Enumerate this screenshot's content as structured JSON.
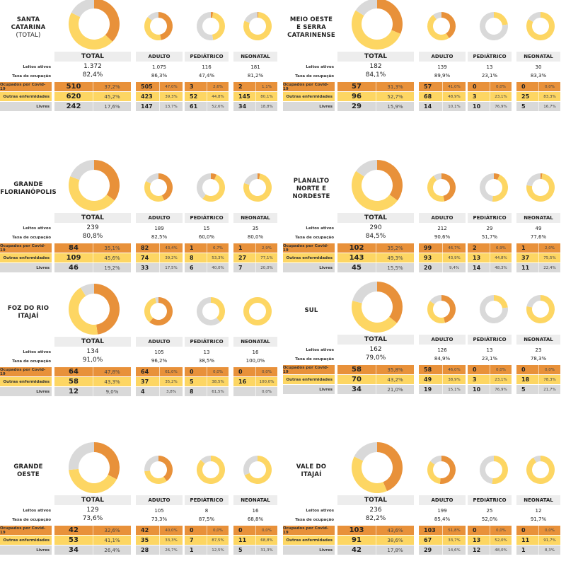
{
  "colors": {
    "covid": "#E8913A",
    "outras": "#FDD663",
    "livres": "#D9D9D9",
    "header": "#EDEDED"
  },
  "columns": [
    "TOTAL",
    "ADULTO",
    "PEDIÁTRICO",
    "NEONATAL"
  ],
  "row_labels": {
    "leitos": "Leitos ativos",
    "taxa": "Taxa de ocupação",
    "covid": "Ocupados por Covid-19",
    "outras": "Outras enfermidades",
    "livres": "Livres"
  },
  "chart_data": [
    {
      "type": "pie",
      "region": [
        "SANTA",
        "CATARINA"
      ],
      "subtitle": "(TOTAL)",
      "groups": [
        {
          "leitos": "1.372",
          "taxa": "82,4%",
          "covid": [
            510,
            "37,2%"
          ],
          "outras": [
            620,
            "45,2%"
          ],
          "livres": [
            242,
            "17,6%"
          ]
        },
        {
          "leitos": "1.075",
          "taxa": "86,3%",
          "covid": [
            505,
            "47,0%"
          ],
          "outras": [
            423,
            "39,3%"
          ],
          "livres": [
            147,
            "13,7%"
          ]
        },
        {
          "leitos": "116",
          "taxa": "47,4%",
          "covid": [
            3,
            "2,6%"
          ],
          "outras": [
            52,
            "44,8%"
          ],
          "livres": [
            61,
            "52,6%"
          ]
        },
        {
          "leitos": "181",
          "taxa": "81,2%",
          "covid": [
            2,
            "1,1%"
          ],
          "outras": [
            145,
            "80,1%"
          ],
          "livres": [
            34,
            "18,8%"
          ]
        }
      ]
    },
    {
      "type": "pie",
      "region": [
        "MEIO OESTE",
        "E SERRA",
        "CATARINENSE"
      ],
      "groups": [
        {
          "leitos": "182",
          "taxa": "84,1%",
          "covid": [
            57,
            "31,3%"
          ],
          "outras": [
            96,
            "52,7%"
          ],
          "livres": [
            29,
            "15,9%"
          ]
        },
        {
          "leitos": "139",
          "taxa": "89,9%",
          "covid": [
            57,
            "41,0%"
          ],
          "outras": [
            68,
            "48,9%"
          ],
          "livres": [
            14,
            "10,1%"
          ]
        },
        {
          "leitos": "13",
          "taxa": "23,1%",
          "covid": [
            0,
            "0,0%"
          ],
          "outras": [
            3,
            "23,1%"
          ],
          "livres": [
            10,
            "76,9%"
          ]
        },
        {
          "leitos": "30",
          "taxa": "83,3%",
          "covid": [
            0,
            "0,0%"
          ],
          "outras": [
            25,
            "83,3%"
          ],
          "livres": [
            5,
            "16,7%"
          ]
        }
      ]
    },
    {
      "type": "pie",
      "region": [
        "GRANDE",
        "FLORIANÓPOLIS"
      ],
      "groups": [
        {
          "leitos": "239",
          "taxa": "80,8%",
          "covid": [
            84,
            "35,1%"
          ],
          "outras": [
            109,
            "45,6%"
          ],
          "livres": [
            46,
            "19,2%"
          ]
        },
        {
          "leitos": "189",
          "taxa": "82,5%",
          "covid": [
            82,
            "43,4%"
          ],
          "outras": [
            74,
            "39,2%"
          ],
          "livres": [
            33,
            "17,5%"
          ]
        },
        {
          "leitos": "15",
          "taxa": "60,0%",
          "covid": [
            1,
            "6,7%"
          ],
          "outras": [
            8,
            "53,3%"
          ],
          "livres": [
            6,
            "40,0%"
          ]
        },
        {
          "leitos": "35",
          "taxa": "80,0%",
          "covid": [
            1,
            "2,9%"
          ],
          "outras": [
            27,
            "77,1%"
          ],
          "livres": [
            7,
            "20,0%"
          ]
        }
      ]
    },
    {
      "type": "pie",
      "region": [
        "PLANALTO",
        "NORTE E",
        "NORDESTE"
      ],
      "groups": [
        {
          "leitos": "290",
          "taxa": "84,5%",
          "covid": [
            102,
            "35,2%"
          ],
          "outras": [
            143,
            "49,3%"
          ],
          "livres": [
            45,
            "15,5%"
          ]
        },
        {
          "leitos": "212",
          "taxa": "90,6%",
          "covid": [
            99,
            "46,7%"
          ],
          "outras": [
            93,
            "43,9%"
          ],
          "livres": [
            20,
            "9,4%"
          ]
        },
        {
          "leitos": "29",
          "taxa": "51,7%",
          "covid": [
            2,
            "6,9%"
          ],
          "outras": [
            13,
            "44,8%"
          ],
          "livres": [
            14,
            "48,3%"
          ]
        },
        {
          "leitos": "49",
          "taxa": "77,6%",
          "covid": [
            1,
            "2,0%"
          ],
          "outras": [
            37,
            "75,5%"
          ],
          "livres": [
            11,
            "22,4%"
          ]
        }
      ]
    },
    {
      "type": "pie",
      "region": [
        "FOZ DO RIO",
        "ITAJAÍ"
      ],
      "groups": [
        {
          "leitos": "134",
          "taxa": "91,0%",
          "covid": [
            64,
            "47,8%"
          ],
          "outras": [
            58,
            "43,3%"
          ],
          "livres": [
            12,
            "9,0%"
          ]
        },
        {
          "leitos": "105",
          "taxa": "96,2%",
          "covid": [
            64,
            "61,0%"
          ],
          "outras": [
            37,
            "35,2%"
          ],
          "livres": [
            4,
            "3,8%"
          ]
        },
        {
          "leitos": "13",
          "taxa": "38,5%",
          "covid": [
            0,
            "0,0%"
          ],
          "outras": [
            5,
            "38,5%"
          ],
          "livres": [
            8,
            "61,5%"
          ]
        },
        {
          "leitos": "16",
          "taxa": "100,0%",
          "covid": [
            0,
            "0,0%"
          ],
          "outras": [
            16,
            "100,0%"
          ],
          "livres": [
            "",
            "0,0%"
          ]
        }
      ]
    },
    {
      "type": "pie",
      "region": [
        "SUL"
      ],
      "groups": [
        {
          "leitos": "162",
          "taxa": "79,0%",
          "covid": [
            58,
            "35,8%"
          ],
          "outras": [
            70,
            "43,2%"
          ],
          "livres": [
            34,
            "21,0%"
          ]
        },
        {
          "leitos": "126",
          "taxa": "84,9%",
          "covid": [
            58,
            "46,0%"
          ],
          "outras": [
            49,
            "38,9%"
          ],
          "livres": [
            19,
            "15,1%"
          ]
        },
        {
          "leitos": "13",
          "taxa": "23,1%",
          "covid": [
            0,
            "0,0%"
          ],
          "outras": [
            3,
            "23,1%"
          ],
          "livres": [
            10,
            "76,9%"
          ]
        },
        {
          "leitos": "23",
          "taxa": "78,3%",
          "covid": [
            0,
            "0,0%"
          ],
          "outras": [
            18,
            "78,3%"
          ],
          "livres": [
            5,
            "21,7%"
          ]
        }
      ]
    },
    {
      "type": "pie",
      "region": [
        "GRANDE",
        "OESTE"
      ],
      "groups": [
        {
          "leitos": "129",
          "taxa": "73,6%",
          "covid": [
            42,
            "32,6%"
          ],
          "outras": [
            53,
            "41,1%"
          ],
          "livres": [
            34,
            "26,4%"
          ]
        },
        {
          "leitos": "105",
          "taxa": "73,3%",
          "covid": [
            42,
            "40,0%"
          ],
          "outras": [
            35,
            "33,3%"
          ],
          "livres": [
            28,
            "26,7%"
          ]
        },
        {
          "leitos": "8",
          "taxa": "87,5%",
          "covid": [
            0,
            "0,0%"
          ],
          "outras": [
            7,
            "87,5%"
          ],
          "livres": [
            1,
            "12,5%"
          ]
        },
        {
          "leitos": "16",
          "taxa": "68,8%",
          "covid": [
            0,
            "0,0%"
          ],
          "outras": [
            11,
            "68,8%"
          ],
          "livres": [
            5,
            "31,3%"
          ]
        }
      ]
    },
    {
      "type": "pie",
      "region": [
        "VALE DO",
        "ITAJAÍ"
      ],
      "groups": [
        {
          "leitos": "236",
          "taxa": "82,2%",
          "covid": [
            103,
            "43,6%"
          ],
          "outras": [
            91,
            "38,6%"
          ],
          "livres": [
            42,
            "17,8%"
          ]
        },
        {
          "leitos": "199",
          "taxa": "85,4%",
          "covid": [
            103,
            "51,8%"
          ],
          "outras": [
            67,
            "33,7%"
          ],
          "livres": [
            29,
            "14,6%"
          ]
        },
        {
          "leitos": "25",
          "taxa": "52,0%",
          "covid": [
            0,
            "0,0%"
          ],
          "outras": [
            13,
            "52,0%"
          ],
          "livres": [
            12,
            "48,0%"
          ]
        },
        {
          "leitos": "12",
          "taxa": "91,7%",
          "covid": [
            0,
            "0,0%"
          ],
          "outras": [
            11,
            "91,7%"
          ],
          "livres": [
            1,
            "8,3%"
          ]
        }
      ]
    }
  ]
}
